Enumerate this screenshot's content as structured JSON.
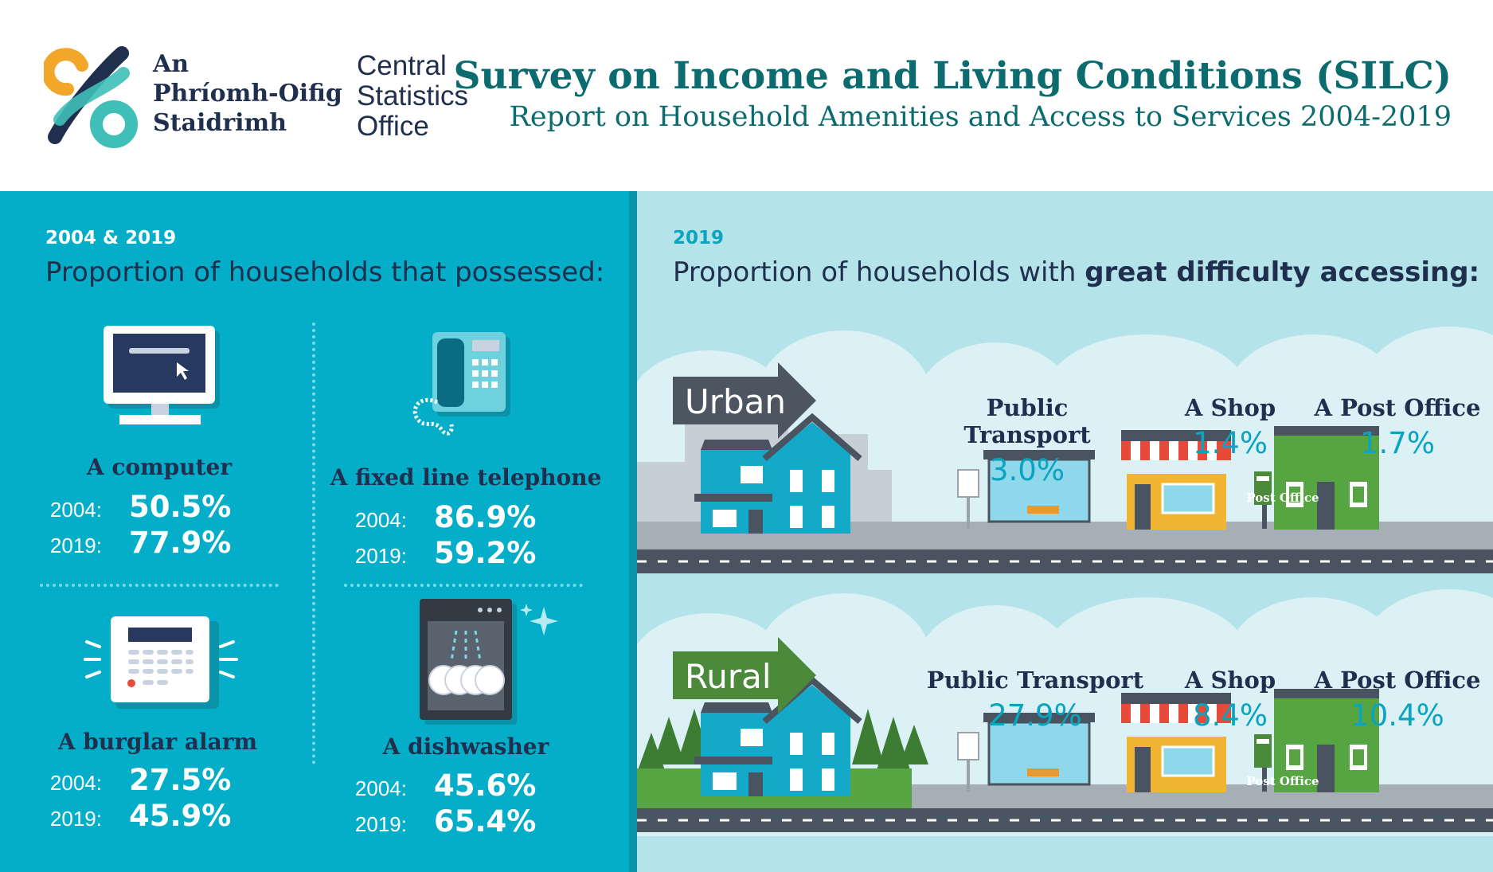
{
  "header": {
    "logo_irish": [
      "An",
      "Phríomh-Oifig",
      "Staidrimh"
    ],
    "logo_english": [
      "Central",
      "Statistics",
      "Office"
    ],
    "title": "Survey on Income and Living Conditions (SILC)",
    "subtitle": "Report on Household Amenities and Access to Services 2004-2019"
  },
  "left": {
    "year_label": "2004 & 2019",
    "heading": "Proportion of households that possessed:",
    "items": [
      {
        "name": "A computer",
        "year1": "2004:",
        "val1": "50.5%",
        "year2": "2019:",
        "val2": "77.9%",
        "icon": "computer-icon"
      },
      {
        "name": "A fixed line telephone",
        "year1": "2004:",
        "val1": "86.9%",
        "year2": "2019:",
        "val2": "59.2%",
        "icon": "telephone-icon"
      },
      {
        "name": "A burglar alarm",
        "year1": "2004:",
        "val1": "27.5%",
        "year2": "2019:",
        "val2": "45.9%",
        "icon": "alarm-icon"
      },
      {
        "name": "A dishwasher",
        "year1": "2004:",
        "val1": "45.6%",
        "year2": "2019:",
        "val2": "65.4%",
        "icon": "dishwasher-icon"
      }
    ]
  },
  "right": {
    "year_label": "2019",
    "heading_plain": "Proportion of households with ",
    "heading_bold": "great difficulty accessing:",
    "sections": [
      {
        "label": "Urban",
        "services": [
          {
            "name": "Public Transport",
            "value": "3.0%"
          },
          {
            "name": "A Shop",
            "value": "1.4%"
          },
          {
            "name": "A Post Office",
            "value": "1.7%"
          }
        ]
      },
      {
        "label": "Rural",
        "services": [
          {
            "name": "Public Transport",
            "value": "27.9%"
          },
          {
            "name": "A Shop",
            "value": "8.4%"
          },
          {
            "name": "A Post Office",
            "value": "10.4%"
          }
        ]
      }
    ],
    "post_office_sign": "Post Office"
  },
  "colors": {
    "left_bg": "#05aec8",
    "right_bg": "#b5e3ea",
    "title_teal": "#0b6b6e",
    "navy": "#1f2f4d",
    "urban_arrow": "#4d5560",
    "rural_arrow": "#4b8a3b",
    "value_blue": "#0aa4c0"
  }
}
